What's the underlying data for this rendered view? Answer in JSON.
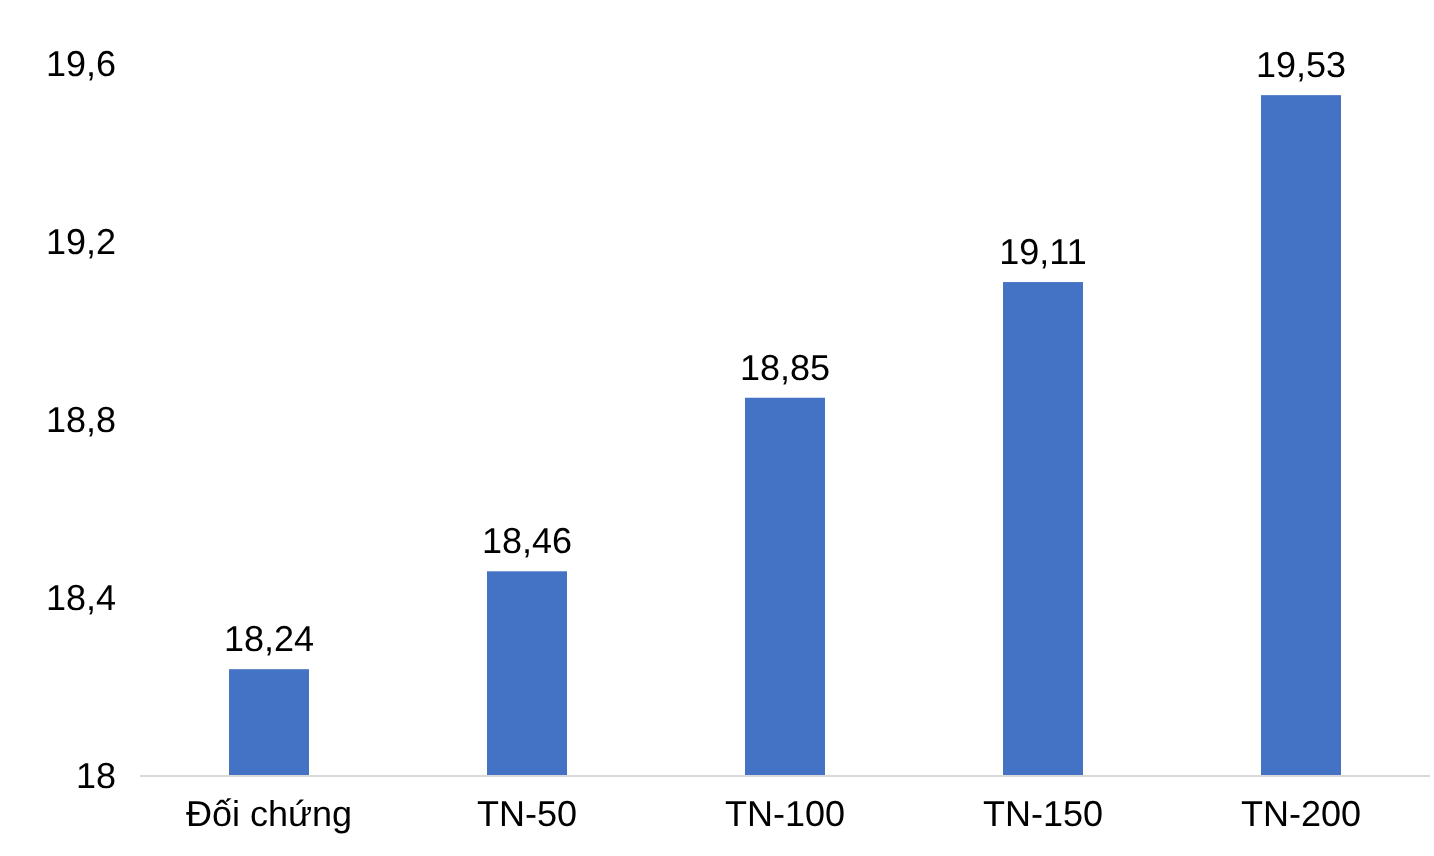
{
  "chart_data": {
    "type": "bar",
    "categories": [
      "Đối chứng",
      "TN-50",
      "TN-100",
      "TN-150",
      "TN-200"
    ],
    "values": [
      18.24,
      18.46,
      18.85,
      19.11,
      19.53
    ],
    "color": "#4472c4",
    "value_labels": [
      "18,24",
      "18,46",
      "18,85",
      "19,11",
      "19,53"
    ],
    "ylim": [
      18,
      19.6
    ],
    "yticks": [
      18,
      {
        "value": 18.4,
        "label": "18,4"
      },
      {
        "value": 18.8,
        "label": "18,8"
      },
      {
        "value": 19.2,
        "label": "19,2"
      },
      {
        "value": 19.6,
        "label": "19,6"
      }
    ],
    "grid": false
  }
}
